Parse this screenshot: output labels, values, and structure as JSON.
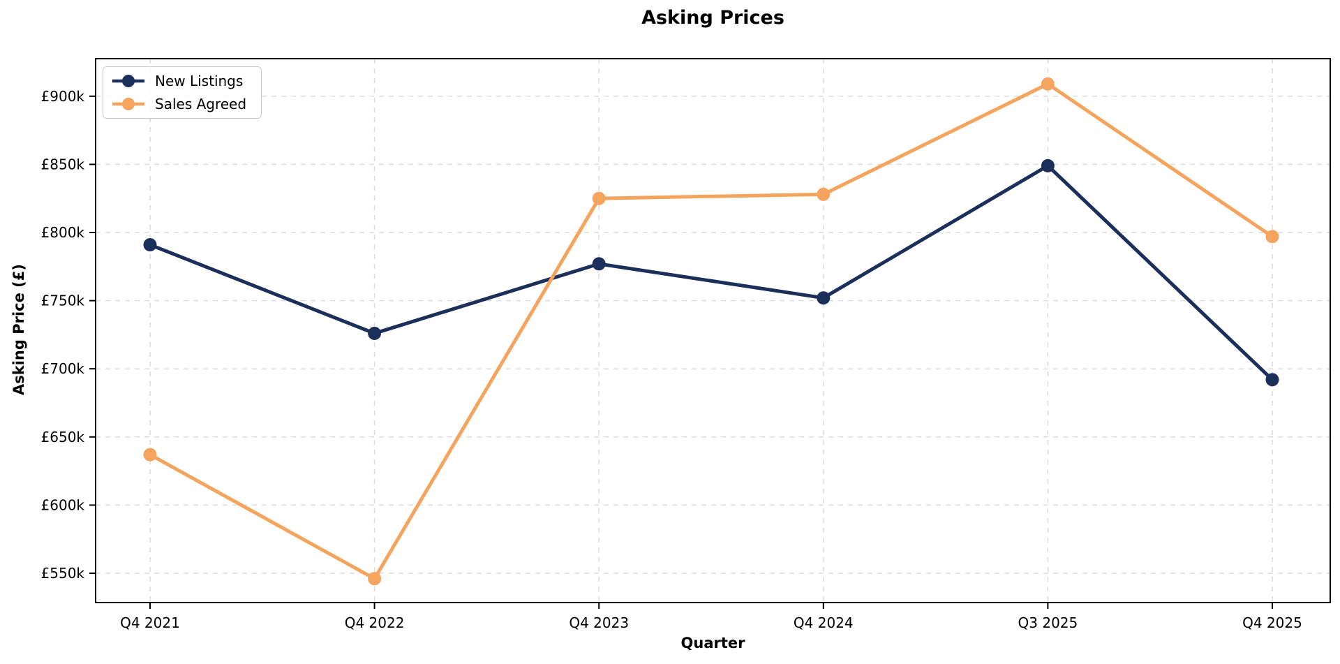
{
  "chart_data": {
    "type": "line",
    "title": "Asking Prices",
    "xlabel": "Quarter",
    "ylabel": "Asking Price (£)",
    "categories": [
      "Q4 2021",
      "Q4 2022",
      "Q4 2023",
      "Q4 2024",
      "Q3 2025",
      "Q4 2025"
    ],
    "series": [
      {
        "name": "New Listings",
        "color": "#1a2f5a",
        "values": [
          791,
          726,
          777,
          752,
          849,
          692
        ]
      },
      {
        "name": "Sales Agreed",
        "color": "#f4a45c",
        "values": [
          637,
          546,
          825,
          828,
          909,
          797
        ]
      }
    ],
    "values_unit": "thousand GBP",
    "yticks": [
      {
        "value": 550,
        "label": "£550k"
      },
      {
        "value": 600,
        "label": "£600k"
      },
      {
        "value": 650,
        "label": "£650k"
      },
      {
        "value": 700,
        "label": "£700k"
      },
      {
        "value": 750,
        "label": "£750k"
      },
      {
        "value": 800,
        "label": "£800k"
      },
      {
        "value": 850,
        "label": "£850k"
      },
      {
        "value": 900,
        "label": "£900k"
      }
    ],
    "ylim": [
      526,
      929
    ],
    "grid": "dashed both axes",
    "legend_position": "upper left"
  }
}
